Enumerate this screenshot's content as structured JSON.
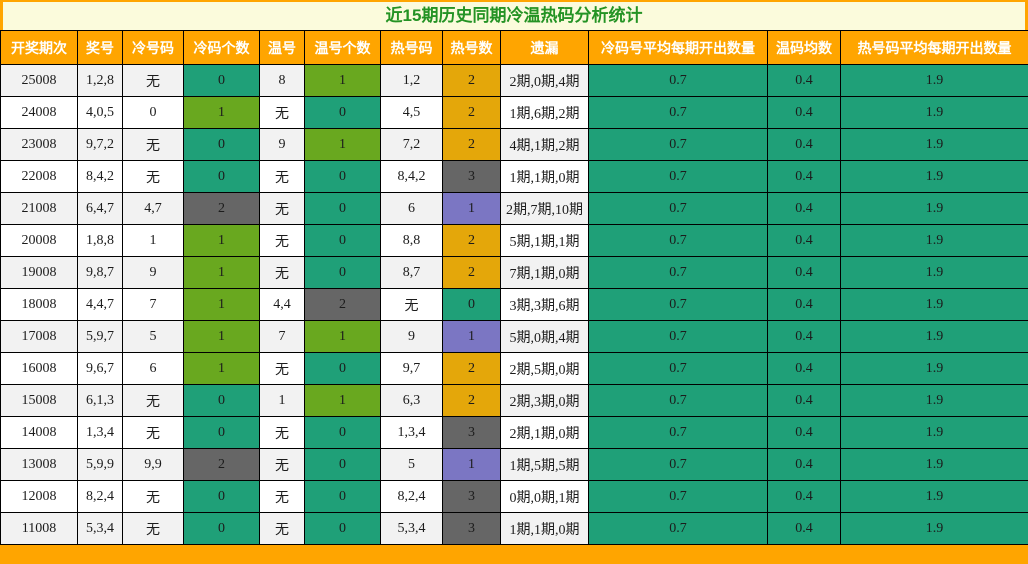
{
  "title": "近15期历史同期冷温热码分析统计",
  "colors": {
    "frame": "#FFA500",
    "title_bg": "#FBFBDC",
    "title_text": "#249324",
    "header_bg": "#FFA500",
    "teal": "#1FA078",
    "green": "#69A81F",
    "gold": "#E4A70A",
    "gray": "#666666",
    "purple": "#7B76C3"
  },
  "columns": [
    "开奖期次",
    "奖号",
    "冷号码",
    "冷码个数",
    "温号",
    "温号个数",
    "热号码",
    "热号数",
    "遗漏",
    "冷码号平均每期开出数量",
    "温码均数",
    "热号码平均每期开出数量"
  ],
  "rows": [
    {
      "period": "25008",
      "prize": "1,2,8",
      "cold_nums": "无",
      "cold_count": "0",
      "cold_color": "teal",
      "warm_nums": "8",
      "warm_count": "1",
      "warm_color": "green",
      "hot_nums": "1,2",
      "hot_count": "2",
      "hot_color": "gold",
      "miss": "2期,0期,4期",
      "cold_avg": "0.7",
      "warm_avg": "0.4",
      "hot_avg": "1.9"
    },
    {
      "period": "24008",
      "prize": "4,0,5",
      "cold_nums": "0",
      "cold_count": "1",
      "cold_color": "green",
      "warm_nums": "无",
      "warm_count": "0",
      "warm_color": "teal",
      "hot_nums": "4,5",
      "hot_count": "2",
      "hot_color": "gold",
      "miss": "1期,6期,2期",
      "cold_avg": "0.7",
      "warm_avg": "0.4",
      "hot_avg": "1.9"
    },
    {
      "period": "23008",
      "prize": "9,7,2",
      "cold_nums": "无",
      "cold_count": "0",
      "cold_color": "teal",
      "warm_nums": "9",
      "warm_count": "1",
      "warm_color": "green",
      "hot_nums": "7,2",
      "hot_count": "2",
      "hot_color": "gold",
      "miss": "4期,1期,2期",
      "cold_avg": "0.7",
      "warm_avg": "0.4",
      "hot_avg": "1.9"
    },
    {
      "period": "22008",
      "prize": "8,4,2",
      "cold_nums": "无",
      "cold_count": "0",
      "cold_color": "teal",
      "warm_nums": "无",
      "warm_count": "0",
      "warm_color": "teal",
      "hot_nums": "8,4,2",
      "hot_count": "3",
      "hot_color": "gray",
      "miss": "1期,1期,0期",
      "cold_avg": "0.7",
      "warm_avg": "0.4",
      "hot_avg": "1.9"
    },
    {
      "period": "21008",
      "prize": "6,4,7",
      "cold_nums": "4,7",
      "cold_count": "2",
      "cold_color": "gray",
      "warm_nums": "无",
      "warm_count": "0",
      "warm_color": "teal",
      "hot_nums": "6",
      "hot_count": "1",
      "hot_color": "purple",
      "miss": "2期,7期,10期",
      "cold_avg": "0.7",
      "warm_avg": "0.4",
      "hot_avg": "1.9"
    },
    {
      "period": "20008",
      "prize": "1,8,8",
      "cold_nums": "1",
      "cold_count": "1",
      "cold_color": "green",
      "warm_nums": "无",
      "warm_count": "0",
      "warm_color": "teal",
      "hot_nums": "8,8",
      "hot_count": "2",
      "hot_color": "gold",
      "miss": "5期,1期,1期",
      "cold_avg": "0.7",
      "warm_avg": "0.4",
      "hot_avg": "1.9"
    },
    {
      "period": "19008",
      "prize": "9,8,7",
      "cold_nums": "9",
      "cold_count": "1",
      "cold_color": "green",
      "warm_nums": "无",
      "warm_count": "0",
      "warm_color": "teal",
      "hot_nums": "8,7",
      "hot_count": "2",
      "hot_color": "gold",
      "miss": "7期,1期,0期",
      "cold_avg": "0.7",
      "warm_avg": "0.4",
      "hot_avg": "1.9"
    },
    {
      "period": "18008",
      "prize": "4,4,7",
      "cold_nums": "7",
      "cold_count": "1",
      "cold_color": "green",
      "warm_nums": "4,4",
      "warm_count": "2",
      "warm_color": "gray",
      "hot_nums": "无",
      "hot_count": "0",
      "hot_color": "teal",
      "miss": "3期,3期,6期",
      "cold_avg": "0.7",
      "warm_avg": "0.4",
      "hot_avg": "1.9"
    },
    {
      "period": "17008",
      "prize": "5,9,7",
      "cold_nums": "5",
      "cold_count": "1",
      "cold_color": "green",
      "warm_nums": "7",
      "warm_count": "1",
      "warm_color": "green",
      "hot_nums": "9",
      "hot_count": "1",
      "hot_color": "purple",
      "miss": "5期,0期,4期",
      "cold_avg": "0.7",
      "warm_avg": "0.4",
      "hot_avg": "1.9"
    },
    {
      "period": "16008",
      "prize": "9,6,7",
      "cold_nums": "6",
      "cold_count": "1",
      "cold_color": "green",
      "warm_nums": "无",
      "warm_count": "0",
      "warm_color": "teal",
      "hot_nums": "9,7",
      "hot_count": "2",
      "hot_color": "gold",
      "miss": "2期,5期,0期",
      "cold_avg": "0.7",
      "warm_avg": "0.4",
      "hot_avg": "1.9"
    },
    {
      "period": "15008",
      "prize": "6,1,3",
      "cold_nums": "无",
      "cold_count": "0",
      "cold_color": "teal",
      "warm_nums": "1",
      "warm_count": "1",
      "warm_color": "green",
      "hot_nums": "6,3",
      "hot_count": "2",
      "hot_color": "gold",
      "miss": "2期,3期,0期",
      "cold_avg": "0.7",
      "warm_avg": "0.4",
      "hot_avg": "1.9"
    },
    {
      "period": "14008",
      "prize": "1,3,4",
      "cold_nums": "无",
      "cold_count": "0",
      "cold_color": "teal",
      "warm_nums": "无",
      "warm_count": "0",
      "warm_color": "teal",
      "hot_nums": "1,3,4",
      "hot_count": "3",
      "hot_color": "gray",
      "miss": "2期,1期,0期",
      "cold_avg": "0.7",
      "warm_avg": "0.4",
      "hot_avg": "1.9"
    },
    {
      "period": "13008",
      "prize": "5,9,9",
      "cold_nums": "9,9",
      "cold_count": "2",
      "cold_color": "gray",
      "warm_nums": "无",
      "warm_count": "0",
      "warm_color": "teal",
      "hot_nums": "5",
      "hot_count": "1",
      "hot_color": "purple",
      "miss": "1期,5期,5期",
      "cold_avg": "0.7",
      "warm_avg": "0.4",
      "hot_avg": "1.9"
    },
    {
      "period": "12008",
      "prize": "8,2,4",
      "cold_nums": "无",
      "cold_count": "0",
      "cold_color": "teal",
      "warm_nums": "无",
      "warm_count": "0",
      "warm_color": "teal",
      "hot_nums": "8,2,4",
      "hot_count": "3",
      "hot_color": "gray",
      "miss": "0期,0期,1期",
      "cold_avg": "0.7",
      "warm_avg": "0.4",
      "hot_avg": "1.9"
    },
    {
      "period": "11008",
      "prize": "5,3,4",
      "cold_nums": "无",
      "cold_count": "0",
      "cold_color": "teal",
      "warm_nums": "无",
      "warm_count": "0",
      "warm_color": "teal",
      "hot_nums": "5,3,4",
      "hot_count": "3",
      "hot_color": "gray",
      "miss": "1期,1期,0期",
      "cold_avg": "0.7",
      "warm_avg": "0.4",
      "hot_avg": "1.9"
    }
  ]
}
